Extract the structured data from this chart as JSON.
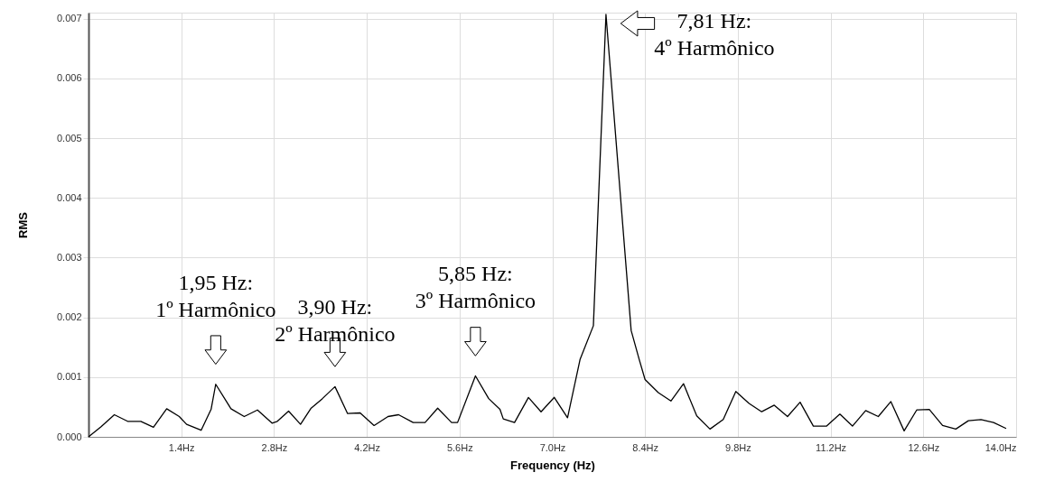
{
  "chart_data": {
    "type": "line",
    "xlabel": "Frequency (Hz)",
    "ylabel": "RMS",
    "x": [
      0,
      0.19,
      0.39,
      0.59,
      0.79,
      0.98,
      1.18,
      1.37,
      1.48,
      1.7,
      1.85,
      1.92,
      2.15,
      2.35,
      2.55,
      2.77,
      2.85,
      3.02,
      3.2,
      3.36,
      3.53,
      3.72,
      3.91,
      4.1,
      4.31,
      4.52,
      4.68,
      4.9,
      5.08,
      5.27,
      5.48,
      5.57,
      5.84,
      6.04,
      6.21,
      6.26,
      6.43,
      6.64,
      6.83,
      7.03,
      7.23,
      7.42,
      7.62,
      7.81,
      8.19,
      8.31,
      8.4,
      8.6,
      8.79,
      8.98,
      9.18,
      9.38,
      9.58,
      9.77,
      9.97,
      10.16,
      10.35,
      10.55,
      10.74,
      10.94,
      11.14,
      11.34,
      11.53,
      11.73,
      11.92,
      12.11,
      12.31,
      12.5,
      12.69,
      12.89,
      13.09,
      13.28,
      13.47,
      13.66,
      13.85
    ],
    "series": [
      {
        "color": "#000000",
        "values": [
          0,
          0.00017,
          0.00037,
          0.00026,
          0.00026,
          0.00016,
          0.00047,
          0.00034,
          0.00021,
          0.00011,
          0.00046,
          0.00088,
          0.00047,
          0.00034,
          0.00045,
          0.00023,
          0.00026,
          0.00043,
          0.00021,
          0.00048,
          0.00064,
          0.00084,
          0.00039,
          0.0004,
          0.00019,
          0.00034,
          0.00037,
          0.00024,
          0.00024,
          0.00048,
          0.00024,
          0.00024,
          0.00102,
          0.00064,
          0.00046,
          0.0003,
          0.00024,
          0.00066,
          0.00042,
          0.00066,
          0.00032,
          0.0013,
          0.00186,
          0.00707,
          0.00178,
          0.0013,
          0.00096,
          0.00074,
          0.0006,
          0.00089,
          0.00035,
          0.00013,
          0.00029,
          0.00076,
          0.00056,
          0.00042,
          0.00053,
          0.00034,
          0.00058,
          0.00018,
          0.00018,
          0.00038,
          0.00018,
          0.00044,
          0.00034,
          0.00059,
          0.0001,
          0.00045,
          0.00046,
          0.00019,
          0.00013,
          0.00027,
          0.00029,
          0.00024,
          0.00014
        ]
      }
    ],
    "xlim": [
      0,
      14
    ],
    "xticks": [
      {
        "value": 1.4,
        "label": "1.4Hz"
      },
      {
        "value": 2.8,
        "label": "2.8Hz"
      },
      {
        "value": 4.2,
        "label": "4.2Hz"
      },
      {
        "value": 5.6,
        "label": "5.6Hz"
      },
      {
        "value": 7.0,
        "label": "7.0Hz"
      },
      {
        "value": 8.4,
        "label": "8.4Hz"
      },
      {
        "value": 9.8,
        "label": "9.8Hz"
      },
      {
        "value": 11.2,
        "label": "11.2Hz"
      },
      {
        "value": 12.6,
        "label": "12.6Hz"
      },
      {
        "value": 14.0,
        "label": "14.0Hz"
      }
    ],
    "ylim": [
      0,
      0.0071
    ],
    "yticks": [
      {
        "value": 0,
        "label": "0.000"
      },
      {
        "value": 0.001,
        "label": "0.001"
      },
      {
        "value": 0.002,
        "label": "0.002"
      },
      {
        "value": 0.003,
        "label": "0.003"
      },
      {
        "value": 0.004,
        "label": "0.004"
      },
      {
        "value": 0.005,
        "label": "0.005"
      },
      {
        "value": 0.006,
        "label": "0.006"
      },
      {
        "value": 0.007,
        "label": "0.007"
      }
    ],
    "grid": true,
    "marker": "none",
    "line_style": "solid",
    "annotations": [
      {
        "text": "1,95 Hz:\n1º Harmônico",
        "x": 1.92,
        "y": 0.00088
      },
      {
        "text": "3,90 Hz:\n2º Harmônico",
        "x": 3.72,
        "y": 0.00084
      },
      {
        "text": "5,85 Hz:\n3º Harmônico",
        "x": 5.84,
        "y": 0.00102
      },
      {
        "text": "7,81 Hz:\n4º Harmônico",
        "x": 7.81,
        "y": 0.00707
      }
    ]
  }
}
